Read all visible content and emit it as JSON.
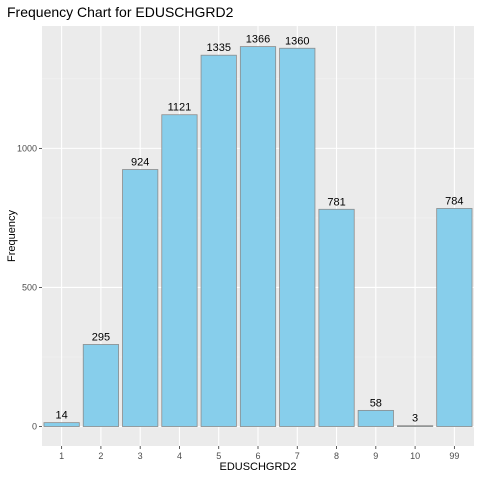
{
  "chart_data": {
    "type": "bar",
    "title": "Frequency Chart for EDUSCHGRD2",
    "xlabel": "EDUSCHGRD2",
    "ylabel": "Frequency",
    "categories": [
      "1",
      "2",
      "3",
      "4",
      "5",
      "6",
      "7",
      "8",
      "9",
      "10",
      "99"
    ],
    "values": [
      14,
      295,
      924,
      1121,
      1335,
      1366,
      1360,
      781,
      58,
      3,
      784
    ],
    "data_labels": [
      "14",
      "295",
      "924",
      "1121",
      "1335",
      "1366",
      "1360",
      "781",
      "58",
      "3",
      "784"
    ],
    "yticks": [
      0,
      500,
      1000
    ],
    "ytick_labels": [
      "0",
      "500",
      "1000"
    ],
    "ylim": [
      -70,
      1440
    ],
    "grid": true,
    "legend": "none",
    "colors": {
      "bar_fill": "#87ceeb",
      "bar_stroke": "#8c8c8c",
      "panel_bg": "#ebebeb",
      "grid_major": "#ffffff",
      "grid_minor": "#f3f3f3"
    }
  }
}
